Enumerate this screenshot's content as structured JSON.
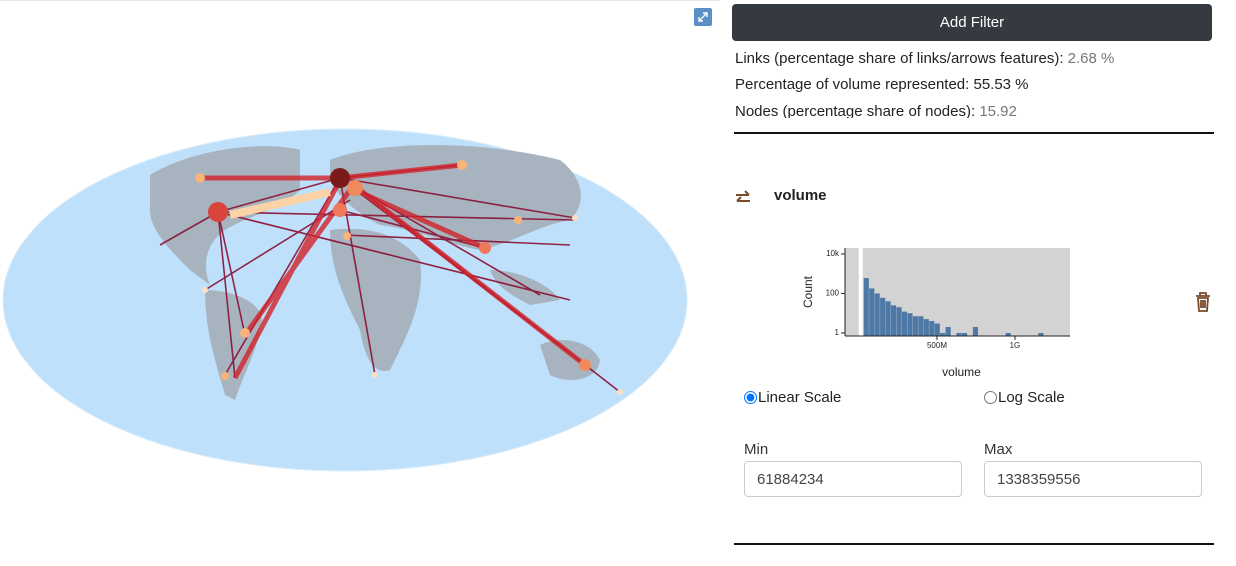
{
  "panel": {
    "button": "Add Filter",
    "links_label": "Links (percentage share of links/arrows features):",
    "links_value": "2.68 %",
    "volume_line": "Percentage of volume represented: 55.53 %",
    "nodes_label": "Nodes (percentage share of nodes):",
    "nodes_value": "15.92",
    "filter_name": "volume",
    "linear": "Linear Scale",
    "log": "Log Scale",
    "min_label": "Min",
    "max_label": "Max",
    "min_value": "61884234",
    "max_value": "1338359556"
  },
  "chart_data": {
    "type": "histogram",
    "x_label": "volume",
    "y_label": "Count",
    "log_y": true,
    "color": "#4e79a7",
    "background": "#d3d3d3",
    "bins": [
      30000000,
      65000000,
      100000000,
      135000000,
      170000000,
      205000000,
      240000000,
      275000000,
      310000000,
      345000000,
      380000000,
      415000000,
      450000000,
      485000000,
      520000000,
      555000000,
      590000000,
      625000000,
      660000000,
      695000000,
      730000000,
      765000000,
      800000000,
      835000000,
      870000000,
      905000000,
      940000000,
      975000000,
      1010000000,
      1045000000,
      1080000000,
      1115000000,
      1150000000,
      1185000000,
      1220000000,
      1255000000,
      1290000000,
      1325000000
    ],
    "counts": [
      600,
      180,
      100,
      60,
      40,
      25,
      20,
      12,
      10,
      7,
      7,
      5,
      4,
      3,
      1,
      2,
      0,
      1,
      1,
      0,
      2,
      0,
      0,
      0,
      0,
      0,
      1,
      0,
      0,
      0,
      0,
      0,
      1,
      0,
      0,
      0,
      0
    ],
    "xlim": [
      -90000000,
      1353000000
    ],
    "xticks": [
      {
        "value": 500000000,
        "label": "500M"
      },
      {
        "value": 1000000000,
        "label": "1G"
      }
    ],
    "ylim": [
      0.7,
      20000
    ],
    "yticks": [
      1,
      100,
      {
        "value": 10000,
        "label": "10k"
      }
    ]
  }
}
